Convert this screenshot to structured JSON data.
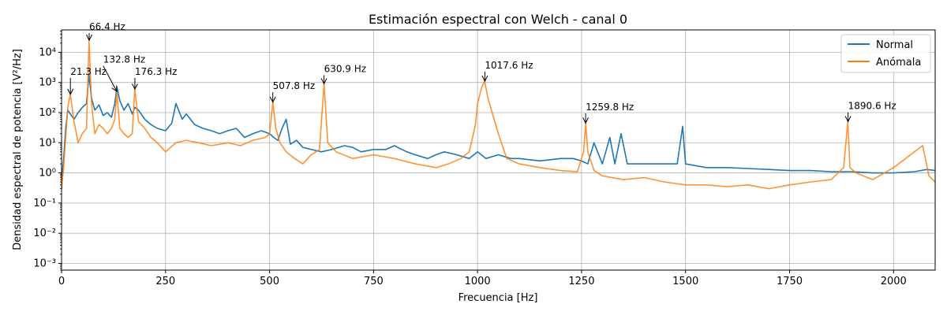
{
  "chart_data": {
    "type": "line",
    "title": "Estimación espectral con Welch - canal 0",
    "xlabel": "Frecuencia [Hz]",
    "ylabel": "Densidad espectral de potencia [V²/Hz]",
    "xlim": [
      0,
      2100
    ],
    "ylim": [
      0.0006,
      55000
    ],
    "yscale": "log",
    "grid": true,
    "legend_position": "top-right",
    "x_ticks": [
      0,
      250,
      500,
      750,
      1000,
      1250,
      1500,
      1750,
      2000
    ],
    "x_tick_labels": [
      "0",
      "250",
      "500",
      "750",
      "1000",
      "1250",
      "1500",
      "1750",
      "2000"
    ],
    "y_ticks": [
      0.001,
      0.01,
      0.1,
      1,
      10,
      100,
      1000,
      10000
    ],
    "y_tick_labels": [
      "10⁻³",
      "10⁻²",
      "10⁻¹",
      "10⁰",
      "10¹",
      "10²",
      "10³",
      "10⁴"
    ],
    "series": [
      {
        "name": "Normal",
        "color": "#1f77b4",
        "x": [
          0,
          5,
          10,
          15,
          21,
          30,
          40,
          50,
          60,
          66,
          72,
          80,
          90,
          100,
          110,
          120,
          128,
          133,
          140,
          150,
          160,
          170,
          176,
          185,
          200,
          215,
          230,
          250,
          265,
          275,
          290,
          300,
          320,
          340,
          360,
          380,
          400,
          420,
          440,
          460,
          480,
          500,
          510,
          520,
          530,
          540,
          550,
          565,
          580,
          600,
          625,
          650,
          680,
          700,
          720,
          750,
          780,
          800,
          830,
          850,
          880,
          900,
          920,
          950,
          980,
          1000,
          1020,
          1050,
          1080,
          1100,
          1150,
          1200,
          1230,
          1250,
          1265,
          1280,
          1300,
          1318,
          1330,
          1345,
          1360,
          1400,
          1450,
          1480,
          1493,
          1500,
          1550,
          1600,
          1650,
          1700,
          1750,
          1800,
          1850,
          1900,
          1950,
          2000,
          2050,
          2080,
          2100
        ],
        "y": [
          0.6,
          3,
          30,
          120,
          90,
          60,
          100,
          150,
          200,
          1800,
          300,
          120,
          180,
          80,
          100,
          70,
          200,
          700,
          250,
          120,
          200,
          90,
          150,
          120,
          60,
          40,
          30,
          25,
          45,
          200,
          60,
          90,
          40,
          30,
          25,
          20,
          25,
          30,
          15,
          20,
          25,
          20,
          15,
          12,
          30,
          60,
          9,
          12,
          7,
          6,
          5,
          6,
          8,
          7,
          5,
          6,
          6,
          8,
          5,
          4,
          3,
          4,
          5,
          4,
          3,
          5,
          3,
          4,
          3,
          3,
          2.5,
          3,
          3,
          2.5,
          2,
          10,
          2,
          15,
          2,
          20,
          2,
          2,
          2,
          2,
          35,
          2,
          1.5,
          1.5,
          1.4,
          1.3,
          1.2,
          1.2,
          1.1,
          1.1,
          1.0,
          1.0,
          1.1,
          1.3,
          1.2
        ]
      },
      {
        "name": "Anómala",
        "color": "#ff7f0e",
        "x": [
          0,
          5,
          10,
          15,
          21,
          30,
          40,
          50,
          60,
          66,
          72,
          80,
          90,
          100,
          110,
          120,
          128,
          133,
          140,
          150,
          160,
          170,
          176,
          185,
          200,
          215,
          230,
          250,
          275,
          300,
          330,
          360,
          400,
          430,
          460,
          490,
          500,
          508,
          515,
          525,
          540,
          560,
          580,
          600,
          620,
          631,
          640,
          660,
          700,
          750,
          800,
          850,
          900,
          930,
          960,
          980,
          995,
          1000,
          1010,
          1017,
          1025,
          1035,
          1050,
          1070,
          1100,
          1150,
          1200,
          1240,
          1255,
          1260,
          1265,
          1280,
          1300,
          1350,
          1400,
          1450,
          1500,
          1550,
          1600,
          1650,
          1700,
          1750,
          1800,
          1850,
          1880,
          1890,
          1895,
          1910,
          1950,
          2000,
          2050,
          2070,
          2085,
          2100
        ],
        "y": [
          0.3,
          1.5,
          15,
          150,
          400,
          50,
          10,
          20,
          30,
          25000,
          200,
          20,
          40,
          30,
          20,
          30,
          60,
          500,
          30,
          20,
          15,
          20,
          600,
          50,
          30,
          15,
          10,
          5,
          10,
          12,
          10,
          8,
          10,
          8,
          12,
          15,
          20,
          220,
          30,
          10,
          5,
          3,
          2,
          4,
          6,
          900,
          10,
          5,
          3,
          4,
          3,
          2,
          1.5,
          2,
          3,
          5,
          40,
          200,
          700,
          1100,
          300,
          100,
          20,
          3,
          2,
          1.5,
          1.2,
          1.1,
          5,
          45,
          5,
          1.2,
          0.8,
          0.6,
          0.7,
          0.5,
          0.4,
          0.4,
          0.35,
          0.4,
          0.3,
          0.4,
          0.5,
          0.6,
          1.5,
          50,
          1.5,
          1.0,
          0.6,
          1.5,
          5,
          8,
          0.8,
          0.5
        ]
      }
    ],
    "annotations": [
      {
        "text": "21.3 Hz",
        "x": 21.3,
        "y": 400,
        "text_x": 21.3,
        "text_y": 1800
      },
      {
        "text": "66.4 Hz",
        "x": 66.4,
        "y": 25000,
        "text_x": 66.4,
        "text_y": 55000
      },
      {
        "text": "132.8 Hz",
        "x": 132.8,
        "y": 500,
        "text_x": 100,
        "text_y": 4500
      },
      {
        "text": "176.3 Hz",
        "x": 176.3,
        "y": 600,
        "text_x": 176.3,
        "text_y": 1800
      },
      {
        "text": "507.8 Hz",
        "x": 507.8,
        "y": 220,
        "text_x": 507.8,
        "text_y": 600
      },
      {
        "text": "630.9 Hz",
        "x": 630.9,
        "y": 900,
        "text_x": 630.9,
        "text_y": 2200
      },
      {
        "text": "1017.6 Hz",
        "x": 1017.6,
        "y": 1100,
        "text_x": 1017.6,
        "text_y": 2900
      },
      {
        "text": "1259.8 Hz",
        "x": 1259.8,
        "y": 45,
        "text_x": 1259.8,
        "text_y": 120
      },
      {
        "text": "1890.6 Hz",
        "x": 1890.6,
        "y": 50,
        "text_x": 1890.6,
        "text_y": 130
      }
    ]
  }
}
